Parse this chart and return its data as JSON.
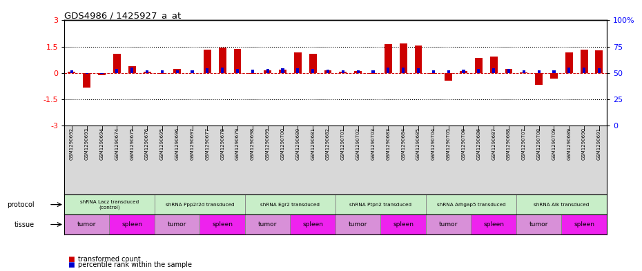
{
  "title": "GDS4986 / 1425927_a_at",
  "samples": [
    "GSM1290692",
    "GSM1290693",
    "GSM1290694",
    "GSM1290674",
    "GSM1290675",
    "GSM1290676",
    "GSM1290695",
    "GSM1290696",
    "GSM1290697",
    "GSM1290677",
    "GSM1290678",
    "GSM1290679",
    "GSM1290698",
    "GSM1290699",
    "GSM1290700",
    "GSM1290680",
    "GSM1290681",
    "GSM1290682",
    "GSM1290701",
    "GSM1290702",
    "GSM1290703",
    "GSM1290683",
    "GSM1290684",
    "GSM1290685",
    "GSM1290704",
    "GSM1290705",
    "GSM1290706",
    "GSM1290686",
    "GSM1290687",
    "GSM1290688",
    "GSM1290707",
    "GSM1290708",
    "GSM1290709",
    "GSM1290689",
    "GSM1290690",
    "GSM1290691"
  ],
  "red_values": [
    0.05,
    -0.85,
    -0.12,
    1.1,
    0.38,
    0.07,
    -0.04,
    0.24,
    -0.02,
    1.32,
    1.43,
    1.38,
    -0.04,
    0.14,
    0.19,
    1.18,
    1.08,
    0.14,
    0.08,
    0.1,
    -0.04,
    1.65,
    1.7,
    1.55,
    -0.04,
    -0.43,
    0.09,
    0.84,
    0.93,
    0.24,
    0.04,
    -0.68,
    -0.33,
    1.18,
    1.33,
    1.28
  ],
  "blue_values": [
    0.13,
    -0.04,
    -0.07,
    0.23,
    0.3,
    0.13,
    0.13,
    0.13,
    0.13,
    0.27,
    0.3,
    0.23,
    0.2,
    0.23,
    0.25,
    0.25,
    0.23,
    0.2,
    0.13,
    0.13,
    0.13,
    0.3,
    0.3,
    0.27,
    0.13,
    0.13,
    0.18,
    0.23,
    0.25,
    0.23,
    0.13,
    0.13,
    0.13,
    0.3,
    0.3,
    0.27
  ],
  "protocols": [
    {
      "label": "shRNA Lacz transduced\n(control)",
      "start": 0,
      "end": 6,
      "color": "#c8eec8"
    },
    {
      "label": "shRNA Ppp2r2d transduced",
      "start": 6,
      "end": 12,
      "color": "#c8eec8"
    },
    {
      "label": "shRNA Egr2 transduced",
      "start": 12,
      "end": 18,
      "color": "#c8eec8"
    },
    {
      "label": "shRNA Ptpn2 transduced",
      "start": 18,
      "end": 24,
      "color": "#c8eec8"
    },
    {
      "label": "shRNA Arhgap5 transduced",
      "start": 24,
      "end": 30,
      "color": "#c8eec8"
    },
    {
      "label": "shRNA Alk transduced",
      "start": 30,
      "end": 36,
      "color": "#c8eec8"
    }
  ],
  "tissues": [
    {
      "label": "tumor",
      "start": 0,
      "end": 3,
      "color": "#d890d8"
    },
    {
      "label": "spleen",
      "start": 3,
      "end": 6,
      "color": "#ee22ee"
    },
    {
      "label": "tumor",
      "start": 6,
      "end": 9,
      "color": "#d890d8"
    },
    {
      "label": "spleen",
      "start": 9,
      "end": 12,
      "color": "#ee22ee"
    },
    {
      "label": "tumor",
      "start": 12,
      "end": 15,
      "color": "#d890d8"
    },
    {
      "label": "spleen",
      "start": 15,
      "end": 18,
      "color": "#ee22ee"
    },
    {
      "label": "tumor",
      "start": 18,
      "end": 21,
      "color": "#d890d8"
    },
    {
      "label": "spleen",
      "start": 21,
      "end": 24,
      "color": "#ee22ee"
    },
    {
      "label": "tumor",
      "start": 24,
      "end": 27,
      "color": "#d890d8"
    },
    {
      "label": "spleen",
      "start": 27,
      "end": 30,
      "color": "#ee22ee"
    },
    {
      "label": "tumor",
      "start": 30,
      "end": 33,
      "color": "#d890d8"
    },
    {
      "label": "spleen",
      "start": 33,
      "end": 36,
      "color": "#ee22ee"
    }
  ],
  "ylim_left": [
    -3,
    3
  ],
  "ylim_right": [
    0,
    100
  ],
  "yticks_left": [
    -3,
    -1.5,
    0,
    1.5,
    3
  ],
  "yticks_right": [
    0,
    25,
    50,
    75,
    100
  ],
  "hlines": [
    -1.5,
    1.5
  ],
  "bar_width": 0.5,
  "red_color": "#cc0000",
  "blue_color": "#0000cc",
  "legend_items": [
    "transformed count",
    "percentile rank within the sample"
  ],
  "label_protocol": "protocol",
  "label_tissue": "tissue",
  "sample_box_color": "#d8d8d8"
}
